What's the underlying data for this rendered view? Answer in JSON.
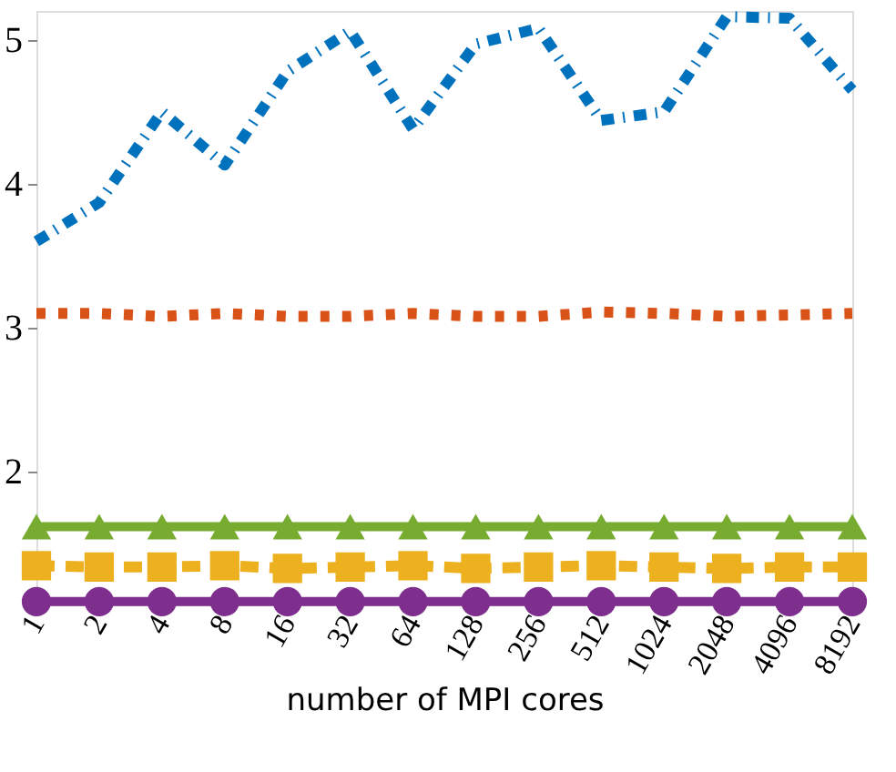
{
  "chart_data": {
    "type": "line",
    "xlabel": "number of MPI cores",
    "categories": [
      "1",
      "2",
      "4",
      "8",
      "16",
      "32",
      "64",
      "128",
      "256",
      "512",
      "1024",
      "2048",
      "4096",
      "8192"
    ],
    "ylim": [
      1.08,
      5.2
    ],
    "yticks": [
      2,
      3,
      4,
      5
    ],
    "grid": false,
    "series": [
      {
        "color": "#0072bd",
        "line_style": "dashdot",
        "marker": "none",
        "values": [
          3.6,
          3.87,
          4.5,
          4.13,
          4.78,
          5.06,
          4.38,
          4.97,
          5.08,
          4.44,
          4.5,
          5.16,
          5.15,
          4.65
        ]
      },
      {
        "color": "#d95319",
        "line_style": "dotted",
        "marker": "none",
        "values": [
          3.1,
          3.1,
          3.08,
          3.1,
          3.08,
          3.08,
          3.1,
          3.08,
          3.08,
          3.11,
          3.1,
          3.08,
          3.09,
          3.1
        ]
      },
      {
        "color": "#edb120",
        "line_style": "dashed",
        "marker": "square",
        "values": [
          1.35,
          1.34,
          1.34,
          1.35,
          1.33,
          1.34,
          1.35,
          1.33,
          1.34,
          1.35,
          1.34,
          1.33,
          1.34,
          1.34
        ]
      },
      {
        "color": "#77ac30",
        "line_style": "solid",
        "marker": "triangle",
        "values": [
          1.62,
          1.62,
          1.62,
          1.62,
          1.62,
          1.62,
          1.62,
          1.62,
          1.62,
          1.62,
          1.62,
          1.62,
          1.62,
          1.62
        ]
      },
      {
        "color": "#7e2f8e",
        "line_style": "solid",
        "marker": "circle",
        "values": [
          1.1,
          1.1,
          1.1,
          1.1,
          1.1,
          1.1,
          1.1,
          1.1,
          1.1,
          1.1,
          1.1,
          1.1,
          1.1,
          1.1
        ]
      }
    ]
  }
}
